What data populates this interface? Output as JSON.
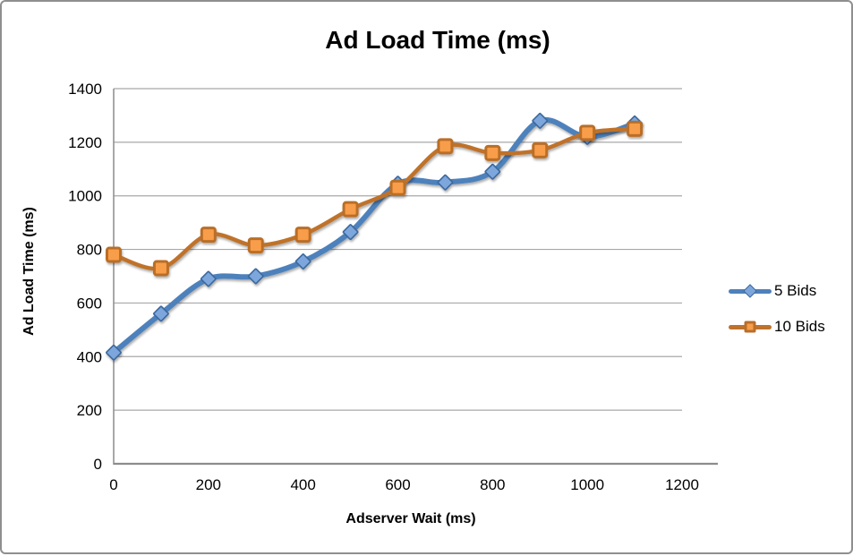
{
  "window": {
    "border_color": "#8F8F8F",
    "background": "#FFFFFF"
  },
  "chart_data": {
    "type": "line",
    "title": "Ad Load Time (ms)",
    "xlabel": "Adserver Wait (ms)",
    "ylabel": "Ad Load Time (ms)",
    "x": [
      0,
      100,
      200,
      300,
      400,
      500,
      600,
      700,
      800,
      900,
      1000,
      1100
    ],
    "series": [
      {
        "name": "5 Bids",
        "marker": "diamond",
        "line_color": "#4E81BC",
        "marker_fill": "#7CA6DC",
        "marker_border": "#3A679C",
        "values": [
          415,
          560,
          690,
          700,
          755,
          865,
          1045,
          1050,
          1090,
          1280,
          1220,
          1270
        ]
      },
      {
        "name": "10 Bids",
        "marker": "square",
        "line_color": "#BF722C",
        "marker_fill": "#F89D49",
        "marker_border": "#BA6E28",
        "values": [
          780,
          730,
          855,
          815,
          855,
          950,
          1030,
          1185,
          1160,
          1170,
          1235,
          1250
        ]
      }
    ],
    "xlim": [
      0,
      1200
    ],
    "ylim": [
      0,
      1400
    ],
    "x_ticks": [
      0,
      200,
      400,
      600,
      800,
      1000,
      1200
    ],
    "y_ticks": [
      0,
      200,
      400,
      600,
      800,
      1000,
      1200,
      1400
    ],
    "grid": "horizontal",
    "gridline_color": "#A8A8A8",
    "axis_color": "#8C8C8C",
    "legend_position": "right",
    "smooth_lines": true
  }
}
